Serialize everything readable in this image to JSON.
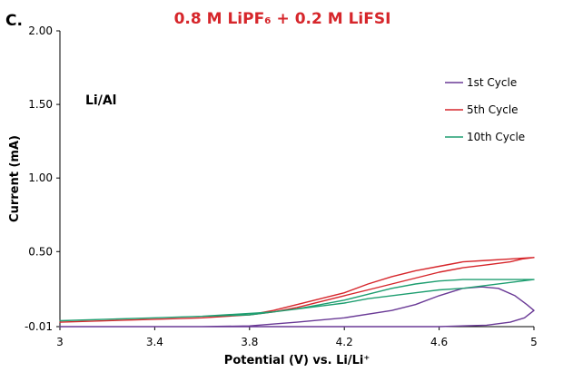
{
  "chart_data": {
    "type": "line",
    "panel_label": "C.",
    "title": "0.8 M LiPF₆ + 0.2 M LiFSI",
    "inset_label": "Li/Al",
    "xlabel": "Potential (V) vs. Li/Li⁺",
    "ylabel": "Current (mA)",
    "xlim": [
      3,
      5
    ],
    "ylim": [
      -0.01,
      2.0
    ],
    "x_ticks": [
      3,
      3.4,
      3.8,
      4.2,
      4.6,
      5
    ],
    "x_tick_labels": [
      "3",
      "3.4",
      "3.8",
      "4.2",
      "4.6",
      "5"
    ],
    "y_ticks": [
      -0.01,
      0.5,
      1.0,
      1.5,
      2.0
    ],
    "y_tick_labels": [
      "-0.01",
      "0.50",
      "1.00",
      "1.50",
      "2.00"
    ],
    "legend_position": "top-right",
    "grid": false,
    "series": [
      {
        "name": "1st Cycle",
        "color": "#6a3a96",
        "x": [
          3.0,
          3.6,
          3.8,
          4.0,
          4.2,
          4.4,
          4.5,
          4.6,
          4.7,
          4.78,
          4.85,
          4.92,
          4.97,
          5.0,
          4.96,
          4.9,
          4.8,
          4.6,
          4.4,
          4.2,
          3.8,
          3.0
        ],
        "y": [
          -0.01,
          -0.01,
          -0.005,
          0.02,
          0.05,
          0.1,
          0.14,
          0.2,
          0.25,
          0.26,
          0.25,
          0.2,
          0.14,
          0.1,
          0.05,
          0.02,
          0.0,
          -0.01,
          -0.01,
          -0.01,
          -0.01,
          -0.01
        ]
      },
      {
        "name": "5th Cycle",
        "color": "#d6262b",
        "x": [
          3.0,
          3.4,
          3.6,
          3.8,
          3.9,
          4.0,
          4.1,
          4.2,
          4.3,
          4.4,
          4.5,
          4.6,
          4.7,
          4.8,
          4.9,
          4.95,
          5.0,
          4.95,
          4.9,
          4.8,
          4.7,
          4.6,
          4.5,
          4.4,
          4.3,
          4.2,
          4.1,
          4.0,
          3.9,
          3.8,
          3.6,
          3.4,
          3.0
        ],
        "y": [
          0.02,
          0.04,
          0.05,
          0.07,
          0.1,
          0.14,
          0.18,
          0.22,
          0.28,
          0.33,
          0.37,
          0.4,
          0.43,
          0.44,
          0.45,
          0.455,
          0.46,
          0.45,
          0.43,
          0.41,
          0.39,
          0.36,
          0.32,
          0.28,
          0.24,
          0.2,
          0.16,
          0.12,
          0.09,
          0.07,
          0.05,
          0.04,
          0.02
        ]
      },
      {
        "name": "10th Cycle",
        "color": "#1e9e70",
        "x": [
          3.0,
          3.4,
          3.6,
          3.8,
          3.9,
          4.0,
          4.1,
          4.2,
          4.3,
          4.4,
          4.5,
          4.6,
          4.7,
          4.8,
          4.9,
          5.0,
          4.9,
          4.8,
          4.7,
          4.6,
          4.5,
          4.4,
          4.3,
          4.2,
          4.1,
          4.0,
          3.9,
          3.8,
          3.6,
          3.4,
          3.0
        ],
        "y": [
          0.03,
          0.05,
          0.06,
          0.07,
          0.09,
          0.11,
          0.14,
          0.17,
          0.21,
          0.25,
          0.28,
          0.3,
          0.31,
          0.31,
          0.31,
          0.31,
          0.29,
          0.27,
          0.25,
          0.24,
          0.22,
          0.2,
          0.18,
          0.15,
          0.13,
          0.11,
          0.09,
          0.08,
          0.06,
          0.05,
          0.03
        ]
      }
    ]
  }
}
